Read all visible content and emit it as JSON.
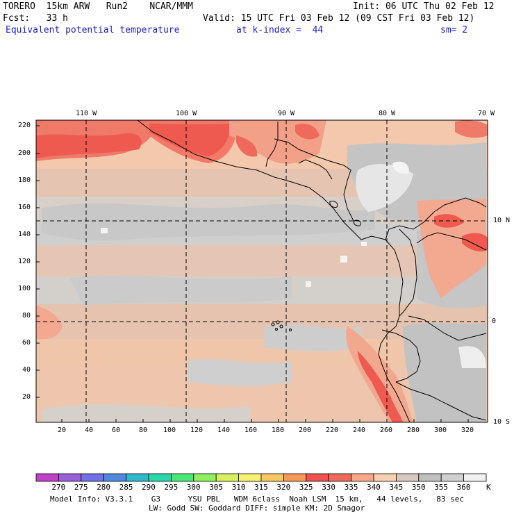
{
  "header": {
    "line1_left": "TORERO  15km ARW   Run2    NCAR/MMM",
    "line1_right": "Init: 06 UTC Thu 02 Feb 12",
    "line2_left": "Fcst:   33 h",
    "line2_right": "Valid: 15 UTC Fri 03 Feb 12 (09 CST Fri 03 Feb 12)",
    "line3_field": "Equivalent potential temperature",
    "line3_level": "at k-index =  44",
    "line3_sm": "sm= 2"
  },
  "map": {
    "top_lon_labels": [
      "110 W",
      "100 W",
      "90 W",
      "80 W",
      "70 W"
    ],
    "right_lat_labels": [
      "10 N",
      "0",
      "10 S"
    ],
    "left_y_ticks": [
      "220",
      "200",
      "180",
      "160",
      "140",
      "120",
      "100",
      "80",
      "60",
      "40",
      "20"
    ],
    "bottom_x_ticks": [
      "20",
      "40",
      "60",
      "80",
      "100",
      "120",
      "140",
      "160",
      "180",
      "200",
      "220",
      "240",
      "260",
      "280",
      "300",
      "320"
    ]
  },
  "colorbar": {
    "levels": [
      "270",
      "275",
      "280",
      "285",
      "290",
      "295",
      "300",
      "305",
      "310",
      "315",
      "320",
      "325",
      "330",
      "335",
      "340",
      "345",
      "350",
      "355",
      "360"
    ],
    "unit": "K",
    "colors": [
      "#c040c8",
      "#9a60d8",
      "#7070e8",
      "#5088e0",
      "#30b8c8",
      "#28d8a8",
      "#48e878",
      "#90f060",
      "#d8f060",
      "#f8f070",
      "#f8c860",
      "#f89858",
      "#f05050",
      "#f06a5a",
      "#f8a888",
      "#f8d0b0",
      "#d8c8c0",
      "#c0c0c0",
      "#d0d0d0",
      "#f0f0f0"
    ]
  },
  "footer": {
    "line1": "Model Info: V3.3.1    G3      YSU PBL   WDM 6class  Noah LSM  15 km,   44 levels,   83 sec",
    "line2": "LW: Godd SW: Goddard DIFF: simple KM: 2D Smagor"
  }
}
